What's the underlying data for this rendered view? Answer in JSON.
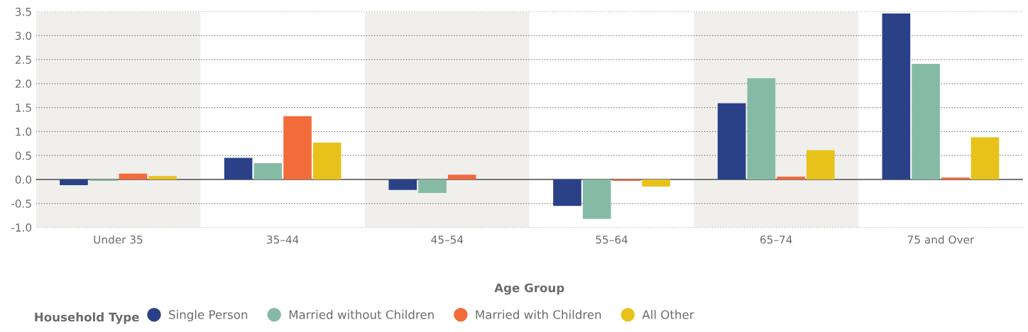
{
  "chart_data": {
    "type": "bar",
    "xlabel": "Age Group",
    "legend_title": "Household Type",
    "legend": "bottom left",
    "categories": [
      "Under 35",
      "35–44",
      "45–54",
      "55–64",
      "65–74",
      "75 and Over"
    ],
    "series": [
      {
        "name": "Single Person",
        "color": "#2b4187",
        "values": [
          -0.12,
          0.45,
          -0.22,
          -0.55,
          1.59,
          3.46
        ]
      },
      {
        "name": "Married without Children",
        "color": "#85bba6",
        "values": [
          -0.03,
          0.34,
          -0.28,
          -0.82,
          2.11,
          2.41
        ]
      },
      {
        "name": "Married with Children",
        "color": "#f26b3a",
        "values": [
          0.12,
          1.32,
          0.1,
          -0.03,
          0.06,
          0.04
        ]
      },
      {
        "name": "All Other",
        "color": "#e8c21a",
        "values": [
          0.07,
          0.77,
          0.0,
          -0.15,
          0.61,
          0.88
        ]
      }
    ],
    "ylim": [
      -1.0,
      3.5
    ],
    "yticks": [
      {
        "value": -1,
        "label": "-1.0"
      },
      {
        "value": -0.5,
        "label": "-0.5"
      },
      {
        "value": 0,
        "label": "0.0"
      },
      {
        "value": 0.5,
        "label": "0.5"
      },
      {
        "value": 1,
        "label": "1.0"
      },
      {
        "value": 1.5,
        "label": "1.5"
      },
      {
        "value": 2,
        "label": "2.0"
      },
      {
        "value": 2.5,
        "label": "2.5"
      },
      {
        "value": 3,
        "label": "3.0"
      },
      {
        "value": 3.5,
        "label": "3.5"
      }
    ],
    "grid": "y",
    "bands": [
      {
        "axis": "x",
        "from": "Under 35",
        "to": "Under 35",
        "color": "#f0efeb"
      },
      {
        "axis": "x",
        "from": "45–54",
        "to": "45–54",
        "color": "#f0efeb"
      },
      {
        "axis": "x",
        "from": "65–74",
        "to": "65–74",
        "color": "#f0efeb"
      }
    ]
  }
}
